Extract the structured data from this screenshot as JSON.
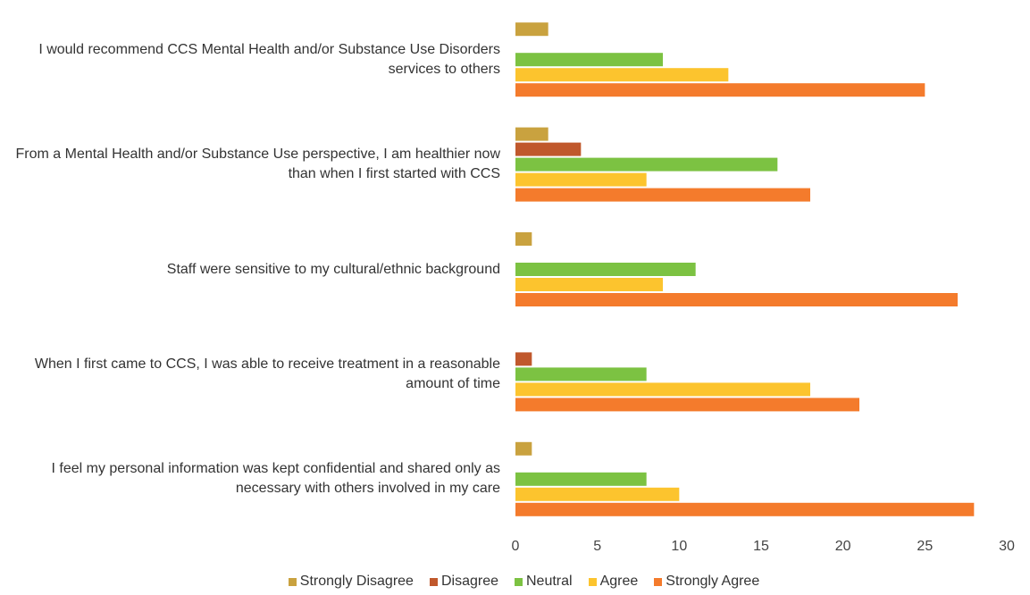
{
  "chart_data": {
    "type": "barh",
    "categories": [
      "I would recommend CCS Mental Health and/or Substance Use Disorders services to others",
      "From a Mental Health and/or Substance Use perspective, I am healthier now than when I first started with CCS",
      "Staff were sensitive to my cultural/ethnic background",
      "When I first came to CCS, I was able to receive treatment in a reasonable amount of time",
      "I feel my personal information was kept confidential and shared only as necessary with others involved in my care"
    ],
    "series": [
      {
        "name": "Strongly Disagree",
        "color": "#c9a23f",
        "values": [
          2,
          2,
          1,
          0,
          1
        ]
      },
      {
        "name": "Disagree",
        "color": "#c0582c",
        "values": [
          0,
          4,
          0,
          1,
          0
        ]
      },
      {
        "name": "Neutral",
        "color": "#7cc242",
        "values": [
          9,
          16,
          11,
          8,
          8
        ]
      },
      {
        "name": "Agree",
        "color": "#fcc42e",
        "values": [
          13,
          8,
          9,
          18,
          10
        ]
      },
      {
        "name": "Strongly Agree",
        "color": "#f47b2c",
        "values": [
          25,
          18,
          27,
          21,
          28
        ]
      }
    ],
    "xlim": [
      0,
      30
    ],
    "xticks": [
      0,
      5,
      10,
      15,
      20,
      25,
      30
    ],
    "grid": false,
    "legend": "bottom"
  }
}
